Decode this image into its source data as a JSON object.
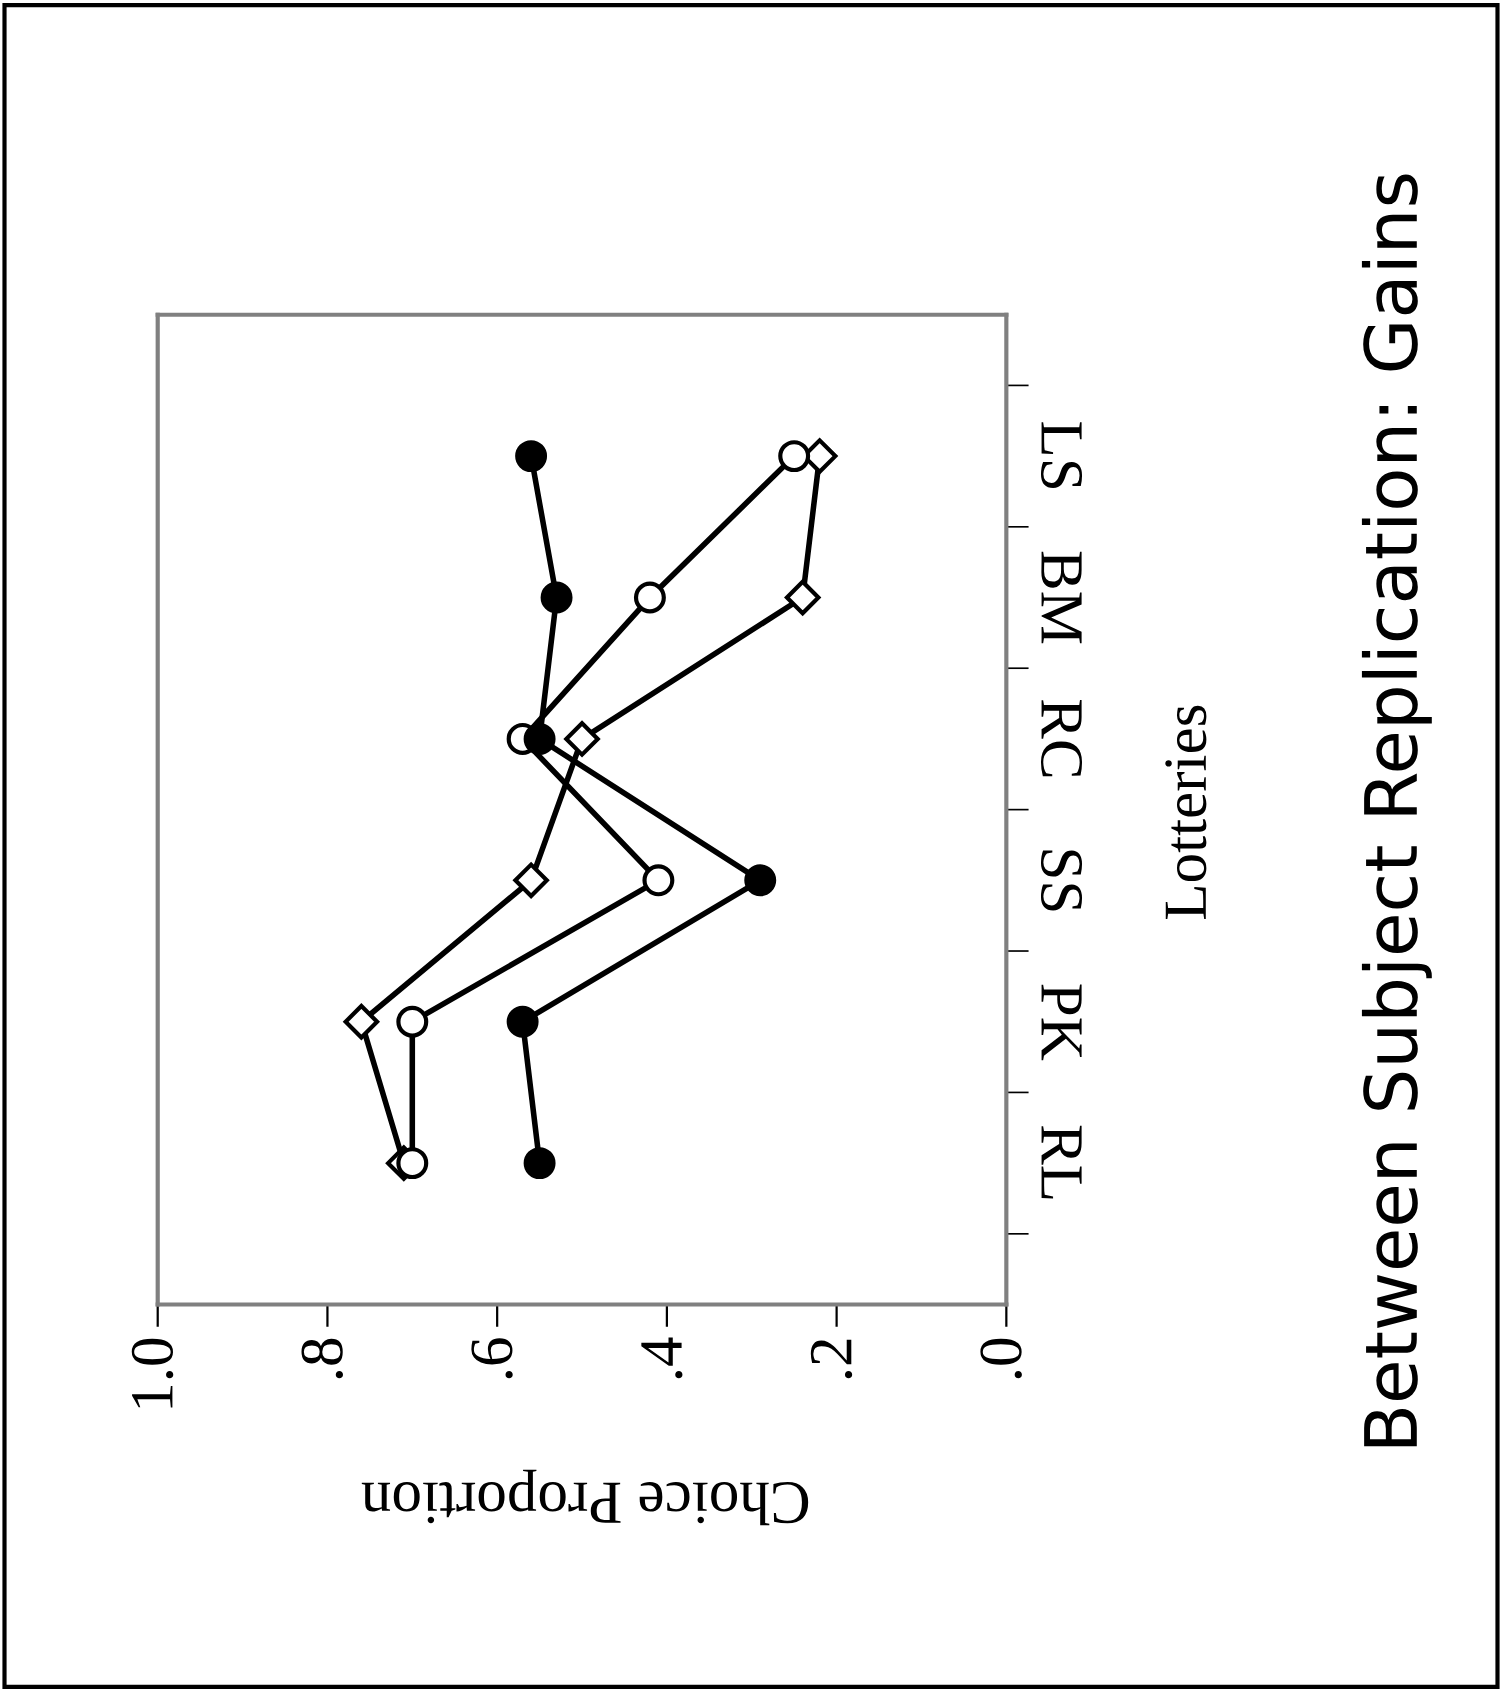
{
  "chart_data": {
    "type": "line",
    "orientation": "horizontal",
    "title": "Between Subject Replication: Gains",
    "xlabel": "Choice Proportion",
    "ylabel": "Lotteries",
    "categories": [
      "LS",
      "BM",
      "RC",
      "SS",
      "PK",
      "RL"
    ],
    "xlim": [
      1.0,
      0.0
    ],
    "xticks": [
      {
        "value": 1.0,
        "label": "1.0"
      },
      {
        "value": 0.8,
        "label": ".8"
      },
      {
        "value": 0.6,
        "label": ".6"
      },
      {
        "value": 0.4,
        "label": ".4"
      },
      {
        "value": 0.2,
        "label": ".2"
      },
      {
        "value": 0.0,
        "label": ".0"
      }
    ],
    "series": [
      {
        "color": "#000000",
        "marker": "circle",
        "values": [
          0.56,
          0.53,
          0.55,
          0.29,
          0.57,
          0.55
        ]
      },
      {
        "color": "#000000",
        "marker": "circle",
        "values": [
          0.25,
          0.42,
          0.57,
          0.41,
          0.7,
          0.7
        ]
      },
      {
        "color": "#000000",
        "marker": "diamond",
        "values": [
          0.22,
          0.24,
          0.5,
          0.56,
          0.76,
          0.71
        ]
      }
    ],
    "grid": false,
    "legend": false,
    "line_style": "solid"
  }
}
